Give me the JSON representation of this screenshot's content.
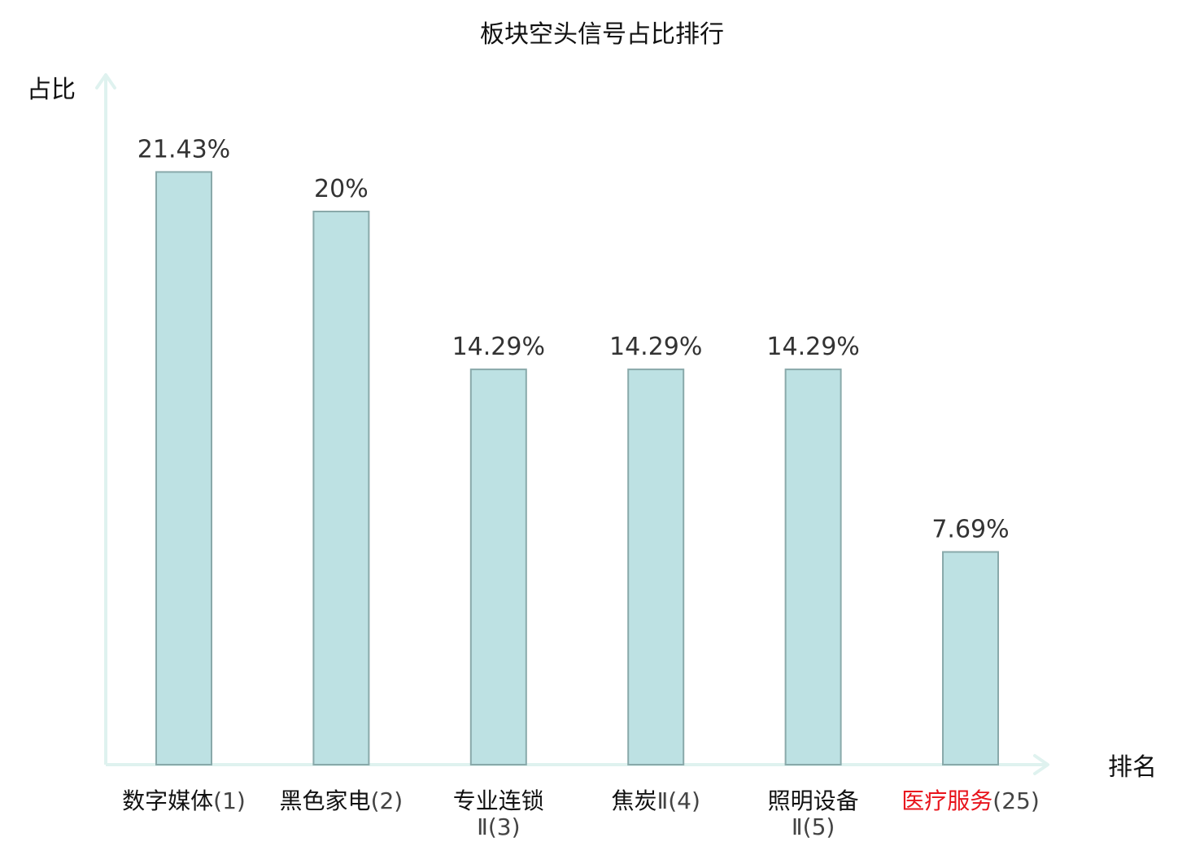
{
  "chart_data": {
    "type": "bar",
    "title": "板块空头信号占比排行",
    "ylabel": "占比",
    "xlabel": "排名",
    "ylim": [
      0,
      25
    ],
    "grid": false,
    "categories": [
      {
        "name": "数字媒体",
        "rank": "(1)"
      },
      {
        "name": "黑色家电",
        "rank": "(2)"
      },
      {
        "name": "专业连锁",
        "rank": "Ⅱ(3)"
      },
      {
        "name": "焦炭",
        "rank": "Ⅱ(4)"
      },
      {
        "name": "照明设备",
        "rank": "Ⅱ(5)"
      },
      {
        "name": "医疗服务",
        "rank": "(25)"
      }
    ],
    "values": [
      21.43,
      20,
      14.29,
      14.29,
      14.29,
      7.69
    ],
    "value_labels": [
      "21.43%",
      "20%",
      "14.29%",
      "14.29%",
      "14.29%",
      "7.69%"
    ],
    "highlight_index": 5,
    "colors": {
      "bar_fill": "#bde1e3",
      "bar_stroke": "#89a9aa",
      "axis": "#dff2ef",
      "highlight_text": "#e8141c",
      "text": "#111111",
      "value_text": "#333333"
    }
  }
}
